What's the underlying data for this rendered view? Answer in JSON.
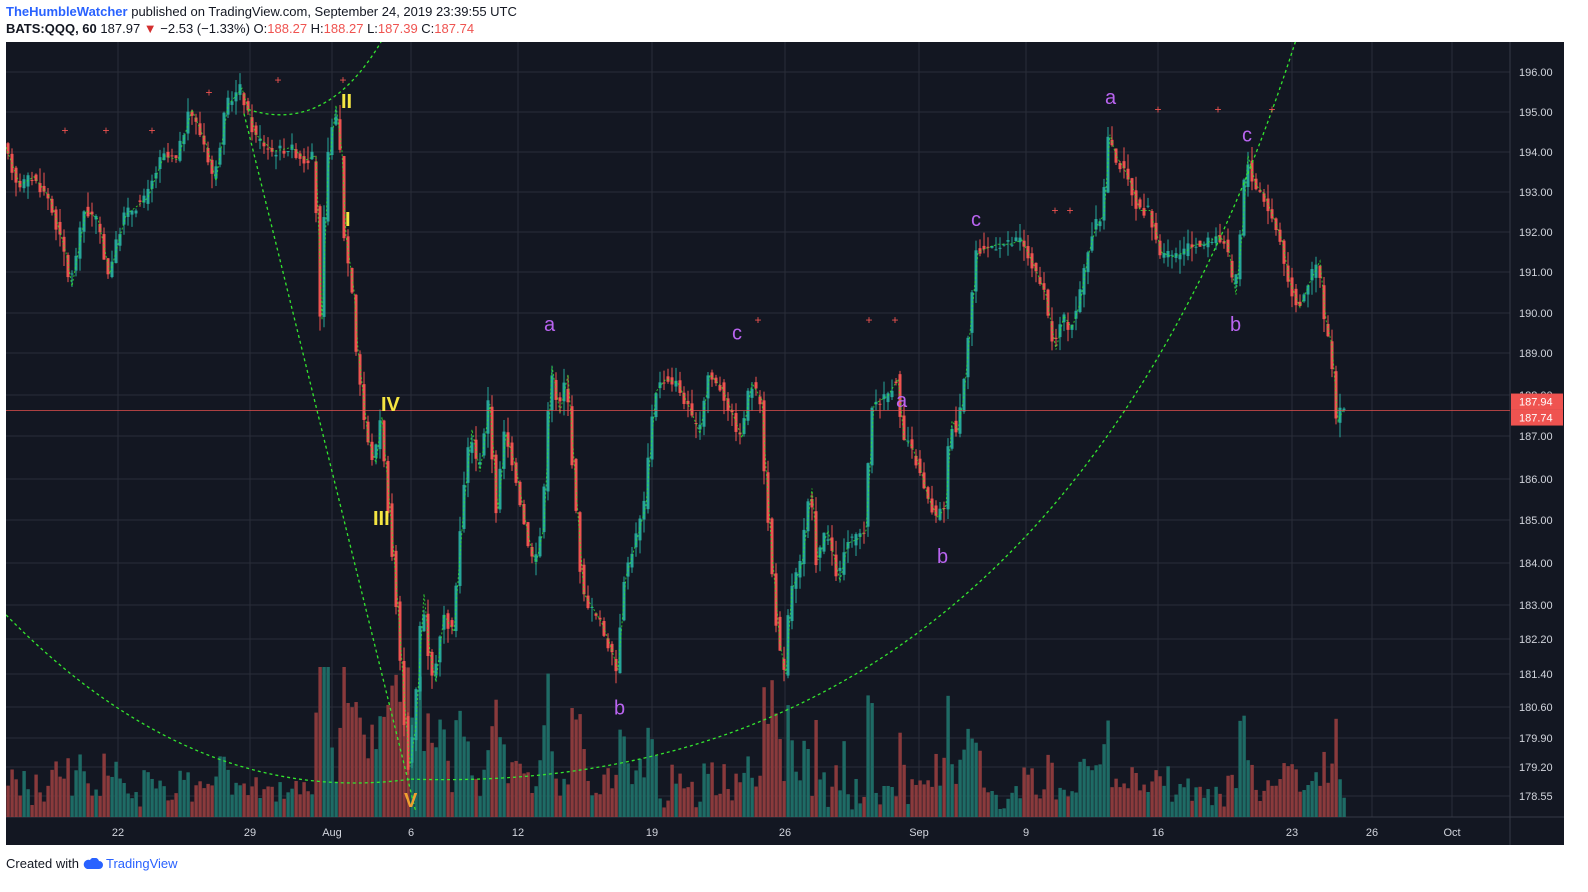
{
  "header": {
    "author": "TheHumbleWatcher",
    "published": "published on TradingView.com, September 24, 2019 23:39:55 UTC",
    "symbol": "BATS:QQQ, 60",
    "last": "187.97",
    "change_arrow": "▼",
    "change": "−2.53 (−1.33%)",
    "o_label": "O:",
    "o_value": "188.27",
    "h_label": "H:",
    "h_value": "188.27",
    "l_label": "L:",
    "l_value": "187.39",
    "c_label": "C:",
    "c_value": "187.74"
  },
  "footer": {
    "created_with": "Created with",
    "brand": "TradingView"
  },
  "colors": {
    "background": "#131722",
    "grid": "#2a2e39",
    "up": "#26a69a",
    "down": "#ef5350",
    "vol_up": "#1e6b65",
    "vol_down": "#8a3a3c",
    "guide": "#33e62f",
    "wave_main": "#f5e642",
    "wave_corrective": "#b964f0",
    "marker": "#ef5350",
    "axis_text": "#d1d4dc"
  },
  "chart_data": {
    "type": "candlestick",
    "symbol": "BATS:QQQ",
    "interval": "60",
    "ylim": [
      178.2,
      196.6
    ],
    "y_ticks": [
      "196.00",
      "195.00",
      "194.00",
      "193.00",
      "192.00",
      "191.00",
      "190.00",
      "189.00",
      "188.00",
      "187.00",
      "186.00",
      "185.00",
      "184.00",
      "183.00",
      "182.20",
      "181.40",
      "180.60",
      "179.90",
      "179.20",
      "178.55"
    ],
    "x_ticks": [
      "22",
      "29",
      "Aug",
      "6",
      "12",
      "19",
      "26",
      "Sep",
      "9",
      "16",
      "23",
      "26",
      "Oct"
    ],
    "price_labels": {
      "current": "187.94",
      "close": "187.74"
    },
    "path_points": [
      [
        0,
        194.1
      ],
      [
        14,
        193.2
      ],
      [
        28,
        193.4
      ],
      [
        44,
        192.9
      ],
      [
        60,
        191.6
      ],
      [
        66,
        190.8
      ],
      [
        80,
        192.6
      ],
      [
        92,
        192.4
      ],
      [
        104,
        191.1
      ],
      [
        120,
        192.5
      ],
      [
        142,
        192.9
      ],
      [
        158,
        193.9
      ],
      [
        172,
        193.8
      ],
      [
        186,
        195.0
      ],
      [
        200,
        194.2
      ],
      [
        210,
        193.3
      ],
      [
        222,
        195.1
      ],
      [
        236,
        195.5
      ],
      [
        250,
        194.4
      ],
      [
        268,
        194.0
      ],
      [
        286,
        194.1
      ],
      [
        300,
        193.8
      ],
      [
        310,
        193.9
      ],
      [
        316,
        190.0
      ],
      [
        322,
        193.5
      ],
      [
        330,
        195.1
      ],
      [
        336,
        194.0
      ],
      [
        340,
        192.0
      ],
      [
        348,
        190.7
      ],
      [
        352,
        189.3
      ],
      [
        356,
        188.5
      ],
      [
        362,
        187.2
      ],
      [
        370,
        186.6
      ],
      [
        376,
        187.7
      ],
      [
        380,
        186.6
      ],
      [
        386,
        185.0
      ],
      [
        392,
        183.2
      ],
      [
        400,
        180.5
      ],
      [
        404,
        179.4
      ],
      [
        410,
        180.4
      ],
      [
        418,
        183.5
      ],
      [
        424,
        182.1
      ],
      [
        430,
        181.4
      ],
      [
        438,
        183.0
      ],
      [
        448,
        182.6
      ],
      [
        458,
        185.6
      ],
      [
        466,
        187.4
      ],
      [
        474,
        186.4
      ],
      [
        484,
        188.0
      ],
      [
        492,
        185.5
      ],
      [
        500,
        187.3
      ],
      [
        510,
        186.5
      ],
      [
        522,
        184.9
      ],
      [
        530,
        184.2
      ],
      [
        538,
        185.1
      ],
      [
        546,
        188.9
      ],
      [
        554,
        187.8
      ],
      [
        562,
        188.7
      ],
      [
        570,
        186.0
      ],
      [
        578,
        183.5
      ],
      [
        586,
        183.2
      ],
      [
        596,
        182.8
      ],
      [
        604,
        182.3
      ],
      [
        612,
        181.7
      ],
      [
        620,
        183.9
      ],
      [
        630,
        184.7
      ],
      [
        640,
        185.6
      ],
      [
        650,
        188.3
      ],
      [
        660,
        188.6
      ],
      [
        672,
        188.5
      ],
      [
        684,
        187.9
      ],
      [
        694,
        187.3
      ],
      [
        704,
        188.7
      ],
      [
        716,
        188.4
      ],
      [
        728,
        187.7
      ],
      [
        736,
        187.2
      ],
      [
        746,
        188.5
      ],
      [
        756,
        188.1
      ],
      [
        760,
        186.5
      ],
      [
        766,
        184.5
      ],
      [
        774,
        182.3
      ],
      [
        780,
        181.6
      ],
      [
        786,
        183.6
      ],
      [
        796,
        184.2
      ],
      [
        806,
        186.0
      ],
      [
        812,
        184.3
      ],
      [
        822,
        185.0
      ],
      [
        834,
        183.8
      ],
      [
        842,
        184.7
      ],
      [
        852,
        184.8
      ],
      [
        860,
        185.0
      ],
      [
        868,
        188.0
      ],
      [
        882,
        188.2
      ],
      [
        892,
        188.6
      ],
      [
        898,
        187.2
      ],
      [
        906,
        187.0
      ],
      [
        914,
        186.5
      ],
      [
        922,
        185.8
      ],
      [
        932,
        185.3
      ],
      [
        940,
        185.6
      ],
      [
        946,
        187.6
      ],
      [
        952,
        187.4
      ],
      [
        958,
        188.2
      ],
      [
        966,
        190.2
      ],
      [
        972,
        191.6
      ],
      [
        980,
        191.7
      ],
      [
        992,
        191.8
      ],
      [
        1004,
        191.8
      ],
      [
        1016,
        191.9
      ],
      [
        1028,
        191.3
      ],
      [
        1040,
        190.6
      ],
      [
        1050,
        189.3
      ],
      [
        1058,
        190.1
      ],
      [
        1066,
        189.8
      ],
      [
        1074,
        190.4
      ],
      [
        1082,
        191.5
      ],
      [
        1090,
        192.2
      ],
      [
        1098,
        192.5
      ],
      [
        1104,
        194.4
      ],
      [
        1110,
        193.9
      ],
      [
        1118,
        193.6
      ],
      [
        1126,
        193.2
      ],
      [
        1134,
        192.6
      ],
      [
        1144,
        192.6
      ],
      [
        1156,
        191.6
      ],
      [
        1166,
        191.5
      ],
      [
        1178,
        191.6
      ],
      [
        1190,
        191.8
      ],
      [
        1200,
        191.8
      ],
      [
        1212,
        192.0
      ],
      [
        1222,
        191.8
      ],
      [
        1230,
        190.6
      ],
      [
        1236,
        192.0
      ],
      [
        1242,
        193.9
      ],
      [
        1250,
        193.2
      ],
      [
        1258,
        193.0
      ],
      [
        1268,
        192.4
      ],
      [
        1276,
        191.9
      ],
      [
        1284,
        190.9
      ],
      [
        1294,
        190.3
      ],
      [
        1304,
        190.9
      ],
      [
        1314,
        191.4
      ],
      [
        1320,
        190.0
      ],
      [
        1326,
        189.4
      ],
      [
        1332,
        187.6
      ],
      [
        1338,
        187.9
      ]
    ],
    "volume_seed": 17,
    "wave_labels": [
      {
        "text": "II",
        "x": 335,
        "y": 195.2,
        "group": "main"
      },
      {
        "text": "I",
        "x": 339,
        "y": 192.4,
        "group": "main"
      },
      {
        "text": "IV",
        "x": 375,
        "y": 188.0,
        "group": "main"
      },
      {
        "text": "III",
        "x": 367,
        "y": 185.3,
        "group": "main"
      },
      {
        "text": "V",
        "x": 398,
        "y": 178.6,
        "group": "main-orange"
      },
      {
        "text": "a",
        "x": 538,
        "y": 189.9,
        "group": "corr"
      },
      {
        "text": "b",
        "x": 608,
        "y": 180.8,
        "group": "corr"
      },
      {
        "text": "c",
        "x": 726,
        "y": 189.7,
        "group": "corr"
      },
      {
        "text": "a",
        "x": 890,
        "y": 188.1,
        "group": "corr"
      },
      {
        "text": "b",
        "x": 931,
        "y": 184.4,
        "group": "corr"
      },
      {
        "text": "c",
        "x": 965,
        "y": 192.4,
        "group": "corr"
      },
      {
        "text": "a",
        "x": 1099,
        "y": 195.3,
        "group": "corr"
      },
      {
        "text": "b",
        "x": 1224,
        "y": 189.9,
        "group": "corr"
      },
      {
        "text": "c",
        "x": 1236,
        "y": 194.4,
        "group": "corr"
      }
    ],
    "markers": [
      {
        "x": 59,
        "y": 194.5
      },
      {
        "x": 100,
        "y": 194.5
      },
      {
        "x": 146,
        "y": 194.5
      },
      {
        "x": 203,
        "y": 195.4
      },
      {
        "x": 272,
        "y": 195.7
      },
      {
        "x": 337,
        "y": 195.7
      },
      {
        "x": 752,
        "y": 190.0
      },
      {
        "x": 863,
        "y": 190.0
      },
      {
        "x": 889,
        "y": 190.0
      },
      {
        "x": 1049,
        "y": 192.6
      },
      {
        "x": 1064,
        "y": 192.6
      },
      {
        "x": 1152,
        "y": 195.0
      },
      {
        "x": 1212,
        "y": 195.0
      },
      {
        "x": 1266,
        "y": 195.0
      }
    ],
    "guides": [
      {
        "kind": "line",
        "from": [
          238,
          194.9
        ],
        "to": [
          410,
          178.3
        ]
      },
      {
        "kind": "curve",
        "from": [
          0,
          183.0
        ],
        "ctrl": [
          190,
          178.4
        ],
        "to": [
          405,
          179.1
        ]
      },
      {
        "kind": "curve",
        "from": [
          405,
          179.1
        ],
        "ctrl": [
          1050,
          178.6
        ],
        "to": [
          1292,
          196.8
        ]
      },
      {
        "kind": "curve",
        "from": [
          242,
          195.0
        ],
        "ctrl": [
          320,
          194.4
        ],
        "to": [
          375,
          196.6
        ]
      }
    ]
  }
}
